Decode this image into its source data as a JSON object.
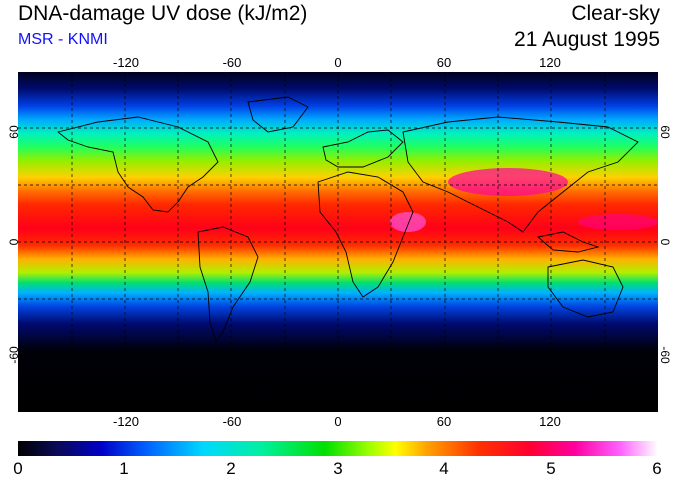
{
  "header": {
    "title": "DNA-damage UV dose (kJ/m2)",
    "subtitle": "MSR - KNMI",
    "condition": "Clear-sky",
    "date": "21 August 1995"
  },
  "axes": {
    "longitude_ticks": [
      "-120",
      "-60",
      "0",
      "60",
      "120"
    ],
    "latitude_ticks": [
      "60",
      "0",
      "-60"
    ]
  },
  "colorbar": {
    "labels": [
      "0",
      "1",
      "2",
      "3",
      "4",
      "5",
      "6"
    ],
    "min": 0,
    "max": 6
  },
  "colors": {
    "subtitle": "#1010ff",
    "background": "#ffffff"
  }
}
